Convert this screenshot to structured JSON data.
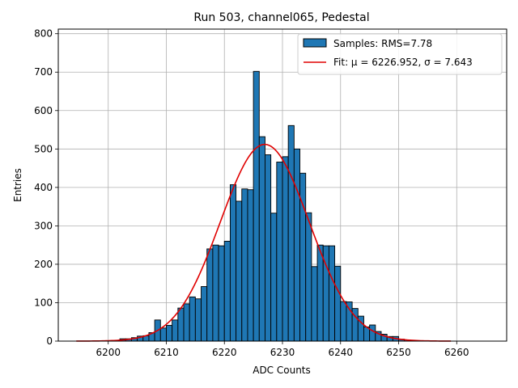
{
  "chart_data": {
    "type": "bar",
    "title": "Run 503, channel065, Pedestal",
    "xlabel": "ADC Counts",
    "ylabel": "Entries",
    "xlim": [
      6191.4,
      6268.6
    ],
    "ylim": [
      0,
      812
    ],
    "x_ticks": [
      6200,
      6210,
      6220,
      6230,
      6240,
      6250,
      6260
    ],
    "y_ticks": [
      0,
      100,
      200,
      300,
      400,
      500,
      600,
      700,
      800
    ],
    "grid": true,
    "legend_position": "top-right",
    "bin_width": 1,
    "bins_start": [
      6202,
      6203,
      6204,
      6205,
      6206,
      6207,
      6208,
      6209,
      6210,
      6211,
      6212,
      6213,
      6214,
      6215,
      6216,
      6217,
      6218,
      6219,
      6220,
      6221,
      6222,
      6223,
      6224,
      6225,
      6226,
      6227,
      6228,
      6229,
      6230,
      6231,
      6232,
      6233,
      6234,
      6235,
      6236,
      6237,
      6238,
      6239,
      6240,
      6241,
      6242,
      6243,
      6244,
      6245,
      6246,
      6247,
      6248,
      6249,
      6250,
      6251,
      6252
    ],
    "counts": [
      6,
      6,
      9,
      13,
      14,
      22,
      55,
      34,
      41,
      55,
      86,
      97,
      115,
      110,
      142,
      240,
      250,
      248,
      260,
      407,
      364,
      396,
      394,
      702,
      532,
      485,
      333,
      466,
      480,
      561,
      500,
      437,
      334,
      194,
      250,
      248,
      248,
      195,
      103,
      102,
      85,
      65,
      37,
      42,
      25,
      18,
      12,
      12,
      5,
      3,
      2
    ],
    "samples": {
      "label": "Samples: RMS=7.78",
      "color": "#1f77b4",
      "edge_color": "#000000"
    },
    "fit": {
      "label": "Fit: μ = 6226.952, σ = 7.643",
      "mu": 6226.952,
      "sigma": 7.643,
      "amplitude": 512,
      "x_range": [
        6194.5,
        6259
      ],
      "color": "#e00000"
    }
  }
}
